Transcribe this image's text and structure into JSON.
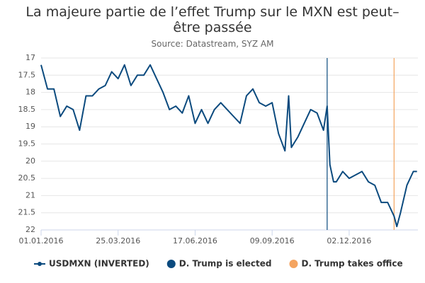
{
  "chart_data": {
    "type": "line",
    "title": "La majeure partie de l’effet Trump sur le MXN est peut–être passée",
    "subtitle": "Source: Datastream, SYZ AM",
    "x": [
      "2016-01-01",
      "2016-01-08",
      "2016-01-15",
      "2016-01-22",
      "2016-01-29",
      "2016-02-05",
      "2016-02-12",
      "2016-02-19",
      "2016-02-26",
      "2016-03-04",
      "2016-03-11",
      "2016-03-18",
      "2016-03-25",
      "2016-04-01",
      "2016-04-08",
      "2016-04-15",
      "2016-04-22",
      "2016-04-29",
      "2016-05-06",
      "2016-05-13",
      "2016-05-20",
      "2016-05-27",
      "2016-06-03",
      "2016-06-10",
      "2016-06-17",
      "2016-06-24",
      "2016-07-01",
      "2016-07-08",
      "2016-07-15",
      "2016-07-22",
      "2016-07-29",
      "2016-08-05",
      "2016-08-12",
      "2016-08-19",
      "2016-08-26",
      "2016-09-02",
      "2016-09-09",
      "2016-09-16",
      "2016-09-23",
      "2016-09-27",
      "2016-09-30",
      "2016-10-07",
      "2016-10-14",
      "2016-10-21",
      "2016-10-28",
      "2016-11-04",
      "2016-11-08",
      "2016-11-11",
      "2016-11-15",
      "2016-11-18",
      "2016-11-25",
      "2016-12-02",
      "2016-12-09",
      "2016-12-16",
      "2016-12-23",
      "2016-12-30",
      "2017-01-06",
      "2017-01-13",
      "2017-01-20",
      "2017-01-23",
      "2017-01-27",
      "2017-02-03",
      "2017-02-10",
      "2017-02-14"
    ],
    "series": [
      {
        "name": "USDMXN (INVERTED)",
        "color": "#0b4a7e",
        "values": [
          17.2,
          17.9,
          17.9,
          18.7,
          18.4,
          18.5,
          19.1,
          18.1,
          18.1,
          17.9,
          17.8,
          17.4,
          17.6,
          17.2,
          17.8,
          17.5,
          17.5,
          17.2,
          17.6,
          18.0,
          18.5,
          18.4,
          18.6,
          18.1,
          18.9,
          18.5,
          18.9,
          18.5,
          18.3,
          18.5,
          18.7,
          18.9,
          18.1,
          17.9,
          18.3,
          18.4,
          18.3,
          19.2,
          19.7,
          18.1,
          19.6,
          19.3,
          18.9,
          18.5,
          18.6,
          19.1,
          18.4,
          20.1,
          20.6,
          20.6,
          20.3,
          20.5,
          20.4,
          20.3,
          20.6,
          20.7,
          21.2,
          21.2,
          21.6,
          21.9,
          21.5,
          20.7,
          20.3,
          20.3
        ]
      }
    ],
    "events": [
      {
        "name": "D. Trump is elected",
        "x": "2016-11-08",
        "color": "#0b4a7e"
      },
      {
        "name": "D. Trump takes office",
        "x": "2017-01-20",
        "color": "#f4a460"
      }
    ],
    "xlim": [
      "2016-01-01",
      "2017-02-15"
    ],
    "xticks": [
      {
        "value": "2016-01-01",
        "label": "01.01.2016"
      },
      {
        "value": "2016-03-25",
        "label": "25.03.2016"
      },
      {
        "value": "2016-06-17",
        "label": "17.06.2016"
      },
      {
        "value": "2016-09-09",
        "label": "09.09.2016"
      },
      {
        "value": "2016-12-02",
        "label": "02.12.2016"
      }
    ],
    "ylim": [
      17,
      22
    ],
    "yticks": [
      17,
      17.5,
      18,
      18.5,
      19,
      19.5,
      20,
      20.5,
      21,
      21.5,
      22
    ],
    "y_inverted": true,
    "grid": true
  }
}
